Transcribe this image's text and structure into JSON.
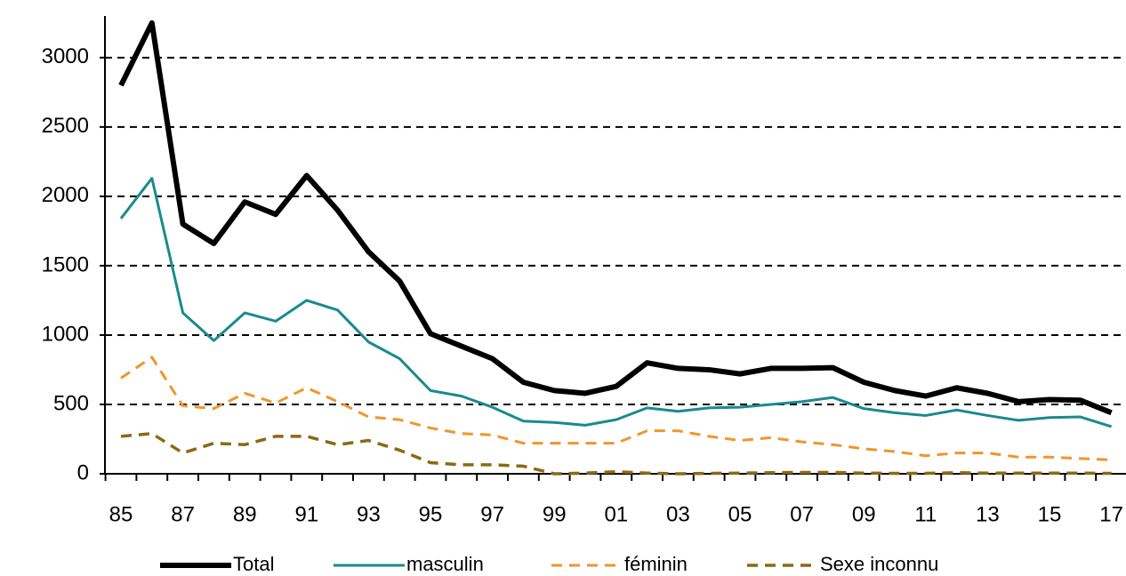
{
  "chart_data": {
    "type": "line",
    "categories": [
      "85",
      null,
      "87",
      null,
      "89",
      null,
      "91",
      null,
      "93",
      null,
      "95",
      null,
      "97",
      null,
      "99",
      null,
      "01",
      null,
      "03",
      null,
      "05",
      null,
      "07",
      null,
      "09",
      null,
      "11",
      null,
      "13",
      null,
      "15",
      null,
      "17"
    ],
    "series": [
      {
        "name": "Total",
        "color": "#000000",
        "dash": "solid",
        "values": [
          2800,
          3250,
          1800,
          1660,
          1960,
          1870,
          2150,
          1900,
          1600,
          1390,
          1010,
          920,
          830,
          660,
          600,
          580,
          630,
          800,
          760,
          750,
          720,
          760,
          760,
          765,
          660,
          600,
          560,
          620,
          580,
          520,
          535,
          530,
          440
        ]
      },
      {
        "name": "masculin",
        "color": "#1a8a8e",
        "dash": "solid",
        "values": [
          1840,
          2130,
          1160,
          960,
          1160,
          1100,
          1250,
          1180,
          950,
          830,
          600,
          560,
          480,
          380,
          370,
          350,
          390,
          475,
          450,
          475,
          480,
          500,
          520,
          550,
          470,
          440,
          420,
          460,
          420,
          385,
          405,
          410,
          340
        ]
      },
      {
        "name": "féminin",
        "color": "#f0962a",
        "dash": "dashed",
        "values": [
          690,
          840,
          490,
          470,
          580,
          510,
          620,
          520,
          410,
          390,
          330,
          290,
          280,
          220,
          220,
          220,
          220,
          310,
          310,
          270,
          240,
          260,
          230,
          210,
          180,
          160,
          130,
          150,
          150,
          120,
          120,
          110,
          100
        ]
      },
      {
        "name": "Sexe inconnu",
        "color": "#8b6914",
        "dash": "dashed",
        "values": [
          270,
          290,
          150,
          220,
          210,
          270,
          270,
          210,
          240,
          170,
          80,
          65,
          65,
          55,
          0,
          5,
          15,
          5,
          0,
          3,
          5,
          8,
          10,
          10,
          5,
          3,
          3,
          8,
          5,
          5,
          5,
          5,
          3
        ]
      }
    ],
    "ylim": [
      0,
      3300
    ],
    "yticks": [
      0,
      500,
      1000,
      1500,
      2000,
      2500,
      3000
    ],
    "grid": true,
    "legend": "bottom"
  }
}
